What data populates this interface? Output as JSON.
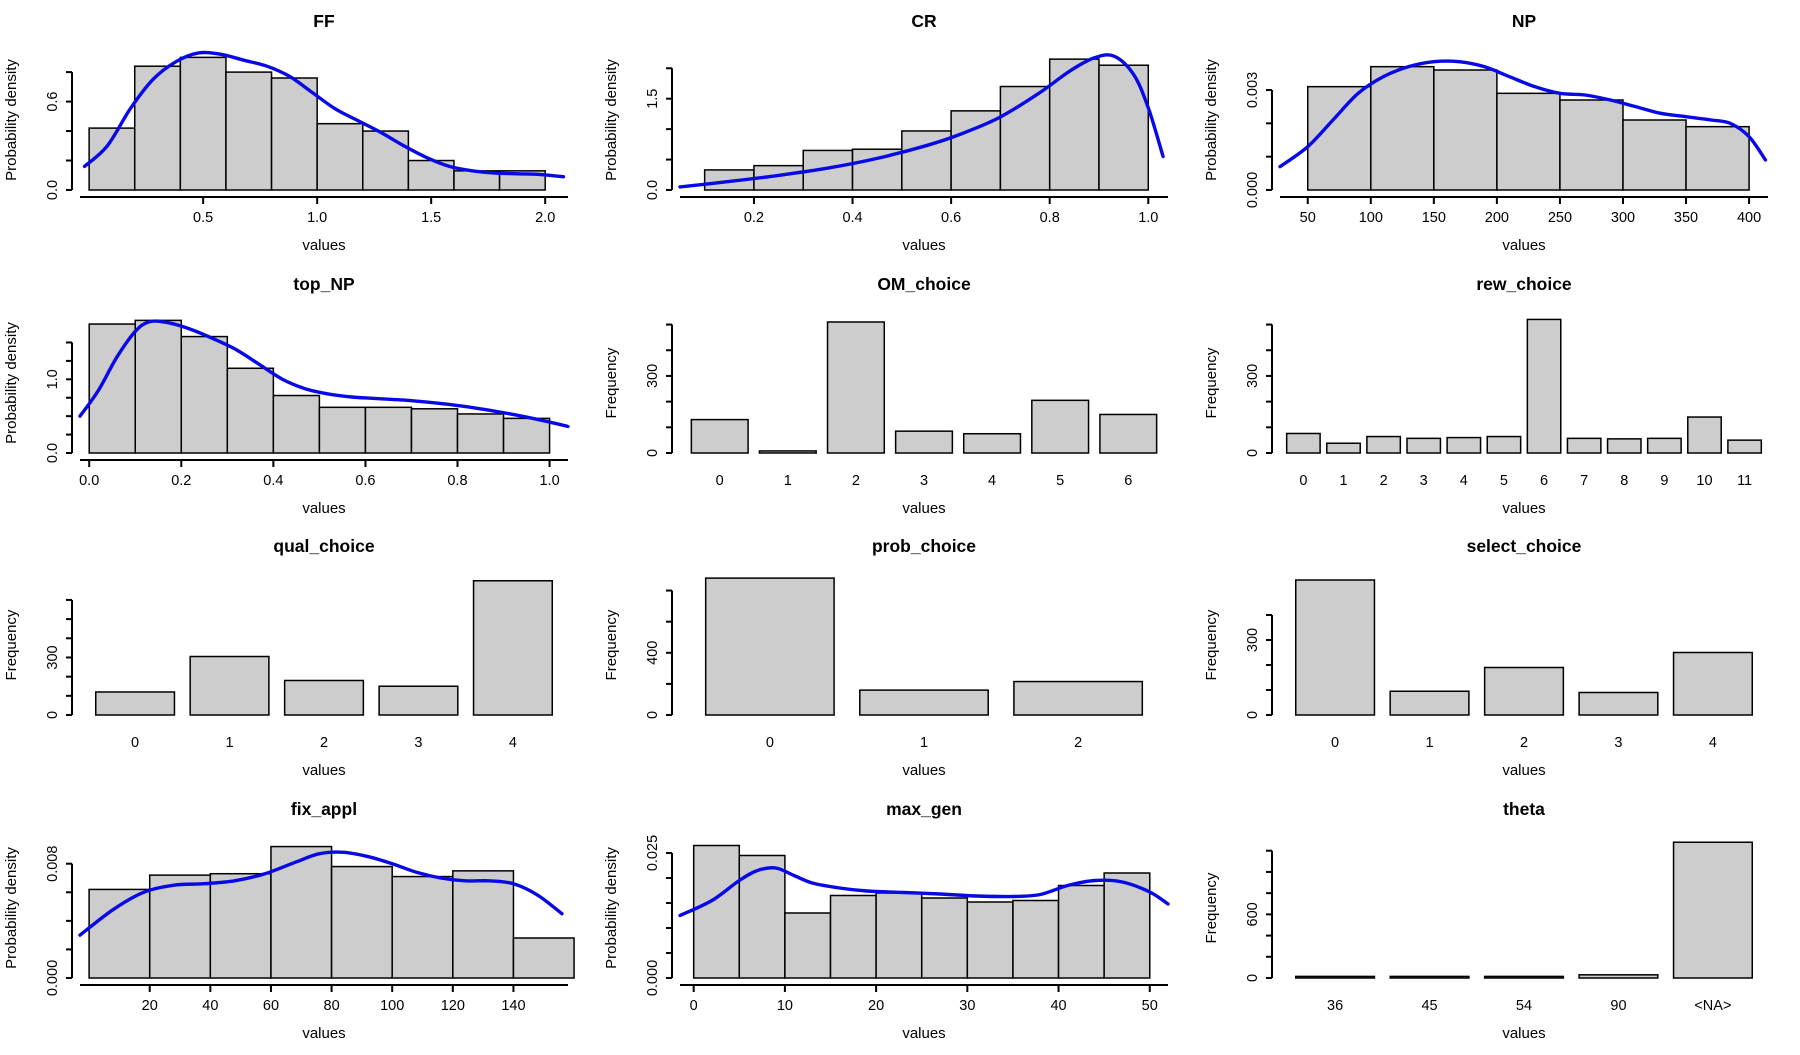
{
  "figure": {
    "background": "#ffffff",
    "bar_fill": "#cdcdcd",
    "bar_stroke": "#000000",
    "axis_color": "#000000",
    "density_color": "#0909e8"
  },
  "chart_data": [
    {
      "title": "FF",
      "type": "histogram",
      "ylabel": "Probability density",
      "xlabel": "values",
      "ymax": 0.95,
      "yticks": [
        [
          0,
          "0.0"
        ],
        [
          0.2,
          ""
        ],
        [
          0.4,
          ""
        ],
        [
          0.6,
          "0.6"
        ],
        [
          0.8,
          ""
        ]
      ],
      "xlim": [
        -0.04,
        2.1
      ],
      "bin_start": 0.0,
      "bin_width": 0.2,
      "heights": [
        0.42,
        0.84,
        0.9,
        0.8,
        0.76,
        0.45,
        0.4,
        0.2,
        0.13,
        0.13
      ],
      "xticks": [
        [
          0.5,
          "0.5"
        ],
        [
          1.0,
          "1.0"
        ],
        [
          1.5,
          "1.5"
        ],
        [
          2.0,
          "2.0"
        ]
      ],
      "density": [
        [
          -0.02,
          0.16
        ],
        [
          0.08,
          0.3
        ],
        [
          0.18,
          0.55
        ],
        [
          0.28,
          0.75
        ],
        [
          0.38,
          0.87
        ],
        [
          0.48,
          0.93
        ],
        [
          0.58,
          0.92
        ],
        [
          0.68,
          0.88
        ],
        [
          0.78,
          0.84
        ],
        [
          0.88,
          0.77
        ],
        [
          0.98,
          0.66
        ],
        [
          1.08,
          0.55
        ],
        [
          1.18,
          0.47
        ],
        [
          1.28,
          0.39
        ],
        [
          1.38,
          0.3
        ],
        [
          1.48,
          0.22
        ],
        [
          1.58,
          0.16
        ],
        [
          1.68,
          0.13
        ],
        [
          1.78,
          0.115
        ],
        [
          1.88,
          0.11
        ],
        [
          1.98,
          0.105
        ],
        [
          2.08,
          0.09
        ]
      ]
    },
    {
      "title": "CR",
      "type": "histogram",
      "ylabel": "Probability density",
      "xlabel": "values",
      "ymax": 2.3,
      "yticks": [
        [
          0,
          "0.0"
        ],
        [
          0.5,
          ""
        ],
        [
          1.0,
          ""
        ],
        [
          1.5,
          "1.5"
        ],
        [
          2.0,
          ""
        ]
      ],
      "xlim": [
        0.05,
        1.04
      ],
      "bin_start": 0.1,
      "bin_width": 0.1,
      "heights": [
        0.33,
        0.4,
        0.65,
        0.67,
        0.97,
        1.3,
        1.7,
        2.15,
        2.05
      ],
      "xticks": [
        [
          0.2,
          "0.2"
        ],
        [
          0.4,
          "0.4"
        ],
        [
          0.6,
          "0.6"
        ],
        [
          0.8,
          "0.8"
        ],
        [
          1.0,
          "1.0"
        ]
      ],
      "density": [
        [
          0.05,
          0.05
        ],
        [
          0.15,
          0.14
        ],
        [
          0.25,
          0.24
        ],
        [
          0.35,
          0.36
        ],
        [
          0.45,
          0.52
        ],
        [
          0.55,
          0.73
        ],
        [
          0.62,
          0.92
        ],
        [
          0.7,
          1.2
        ],
        [
          0.78,
          1.6
        ],
        [
          0.84,
          1.95
        ],
        [
          0.89,
          2.17
        ],
        [
          0.93,
          2.2
        ],
        [
          0.97,
          1.9
        ],
        [
          1.0,
          1.35
        ],
        [
          1.03,
          0.55
        ]
      ]
    },
    {
      "title": "NP",
      "type": "histogram",
      "ylabel": "Probability density",
      "xlabel": "values",
      "ymax": 0.0042,
      "yticks": [
        [
          0,
          "0.000"
        ],
        [
          0.001,
          ""
        ],
        [
          0.002,
          ""
        ],
        [
          0.003,
          "0.003"
        ]
      ],
      "xlim": [
        28,
        415
      ],
      "bin_start": 50,
      "bin_width": 50,
      "heights": [
        0.0031,
        0.0037,
        0.0036,
        0.0029,
        0.0027,
        0.0021,
        0.0019
      ],
      "xticks": [
        [
          50,
          "50"
        ],
        [
          100,
          "100"
        ],
        [
          150,
          "150"
        ],
        [
          200,
          "200"
        ],
        [
          250,
          "250"
        ],
        [
          300,
          "300"
        ],
        [
          350,
          "350"
        ],
        [
          400,
          "400"
        ]
      ],
      "density": [
        [
          28,
          0.0007
        ],
        [
          50,
          0.0013
        ],
        [
          70,
          0.0021
        ],
        [
          90,
          0.0029
        ],
        [
          110,
          0.0034
        ],
        [
          130,
          0.0037
        ],
        [
          150,
          0.00385
        ],
        [
          170,
          0.00385
        ],
        [
          190,
          0.0037
        ],
        [
          210,
          0.0034
        ],
        [
          230,
          0.0031
        ],
        [
          250,
          0.0029
        ],
        [
          270,
          0.00285
        ],
        [
          290,
          0.0027
        ],
        [
          310,
          0.0025
        ],
        [
          330,
          0.0023
        ],
        [
          350,
          0.0022
        ],
        [
          370,
          0.0021
        ],
        [
          385,
          0.002
        ],
        [
          400,
          0.0016
        ],
        [
          413,
          0.0009
        ]
      ]
    },
    {
      "title": "top_NP",
      "type": "histogram",
      "ylabel": "Probability density",
      "xlabel": "values",
      "ymax": 1.9,
      "yticks": [
        [
          0,
          "0.0"
        ],
        [
          0.25,
          ""
        ],
        [
          0.5,
          ""
        ],
        [
          0.75,
          ""
        ],
        [
          1.0,
          "1.0"
        ],
        [
          1.25,
          ""
        ],
        [
          1.5,
          ""
        ]
      ],
      "xlim": [
        -0.02,
        1.04
      ],
      "bin_start": 0.0,
      "bin_width": 0.1,
      "heights": [
        1.75,
        1.8,
        1.58,
        1.15,
        0.78,
        0.62,
        0.62,
        0.6,
        0.53,
        0.47
      ],
      "xticks": [
        [
          0.0,
          "0.0"
        ],
        [
          0.2,
          "0.2"
        ],
        [
          0.4,
          "0.4"
        ],
        [
          0.6,
          "0.6"
        ],
        [
          0.8,
          "0.8"
        ],
        [
          1.0,
          "1.0"
        ]
      ],
      "density": [
        [
          -0.02,
          0.5
        ],
        [
          0.02,
          0.85
        ],
        [
          0.06,
          1.3
        ],
        [
          0.1,
          1.65
        ],
        [
          0.13,
          1.78
        ],
        [
          0.17,
          1.77
        ],
        [
          0.22,
          1.68
        ],
        [
          0.27,
          1.55
        ],
        [
          0.32,
          1.4
        ],
        [
          0.37,
          1.2
        ],
        [
          0.42,
          1.0
        ],
        [
          0.47,
          0.87
        ],
        [
          0.52,
          0.8
        ],
        [
          0.57,
          0.76
        ],
        [
          0.62,
          0.74
        ],
        [
          0.7,
          0.71
        ],
        [
          0.78,
          0.66
        ],
        [
          0.86,
          0.59
        ],
        [
          0.94,
          0.5
        ],
        [
          1.0,
          0.42
        ],
        [
          1.04,
          0.36
        ]
      ]
    },
    {
      "title": "OM_choice",
      "type": "barplot",
      "ylabel": "Frequency",
      "xlabel": "values",
      "ymax": 545,
      "yticks": [
        [
          0,
          "0"
        ],
        [
          100,
          ""
        ],
        [
          200,
          ""
        ],
        [
          300,
          "300"
        ],
        [
          400,
          ""
        ],
        [
          500,
          ""
        ]
      ],
      "categories": [
        "0",
        "1",
        "2",
        "3",
        "4",
        "5",
        "6"
      ],
      "heights": [
        130,
        8,
        510,
        85,
        75,
        205,
        150
      ]
    },
    {
      "title": "rew_choice",
      "type": "barplot",
      "ylabel": "Frequency",
      "xlabel": "values",
      "ymax": 545,
      "yticks": [
        [
          0,
          "0"
        ],
        [
          100,
          ""
        ],
        [
          200,
          ""
        ],
        [
          300,
          "300"
        ],
        [
          400,
          ""
        ],
        [
          500,
          ""
        ]
      ],
      "categories": [
        "0",
        "1",
        "2",
        "3",
        "4",
        "5",
        "6",
        "7",
        "8",
        "9",
        "10",
        "11"
      ],
      "heights": [
        76,
        38,
        64,
        57,
        60,
        64,
        520,
        57,
        55,
        57,
        140,
        50
      ]
    },
    {
      "title": "qual_choice",
      "type": "barplot",
      "ylabel": "Frequency",
      "xlabel": "values",
      "ymax": 730,
      "yticks": [
        [
          0,
          "0"
        ],
        [
          100,
          ""
        ],
        [
          200,
          ""
        ],
        [
          300,
          "300"
        ],
        [
          400,
          ""
        ],
        [
          500,
          ""
        ],
        [
          600,
          ""
        ]
      ],
      "categories": [
        "0",
        "1",
        "2",
        "3",
        "4"
      ],
      "heights": [
        120,
        305,
        180,
        150,
        700
      ]
    },
    {
      "title": "prob_choice",
      "type": "barplot",
      "ylabel": "Frequency",
      "xlabel": "values",
      "ymax": 900,
      "yticks": [
        [
          0,
          "0"
        ],
        [
          200,
          ""
        ],
        [
          400,
          "400"
        ],
        [
          600,
          ""
        ],
        [
          800,
          ""
        ]
      ],
      "categories": [
        "0",
        "1",
        "2"
      ],
      "heights": [
        880,
        160,
        215
      ]
    },
    {
      "title": "select_choice",
      "type": "barplot",
      "ylabel": "Frequency",
      "xlabel": "values",
      "ymax": 560,
      "yticks": [
        [
          0,
          "0"
        ],
        [
          100,
          ""
        ],
        [
          200,
          ""
        ],
        [
          300,
          "300"
        ],
        [
          400,
          ""
        ]
      ],
      "categories": [
        "0",
        "1",
        "2",
        "3",
        "4"
      ],
      "heights": [
        540,
        95,
        190,
        90,
        250
      ]
    },
    {
      "title": "fix_appl",
      "type": "histogram",
      "ylabel": "Probability density",
      "xlabel": "values",
      "ymax": 0.0098,
      "yticks": [
        [
          0,
          "0.000"
        ],
        [
          0.002,
          ""
        ],
        [
          0.004,
          ""
        ],
        [
          0.006,
          ""
        ],
        [
          0.008,
          "0.008"
        ]
      ],
      "xlim": [
        -3,
        158
      ],
      "bin_start": 0,
      "bin_width": 20,
      "heights": [
        0.0062,
        0.0072,
        0.0073,
        0.0092,
        0.0078,
        0.0071,
        0.0075,
        0.0028
      ],
      "xticks": [
        [
          20,
          "20"
        ],
        [
          40,
          "40"
        ],
        [
          60,
          "60"
        ],
        [
          80,
          "80"
        ],
        [
          100,
          "100"
        ],
        [
          120,
          "120"
        ],
        [
          140,
          "140"
        ]
      ],
      "density": [
        [
          -3,
          0.003
        ],
        [
          8,
          0.0048
        ],
        [
          18,
          0.006
        ],
        [
          28,
          0.0065
        ],
        [
          38,
          0.0066
        ],
        [
          48,
          0.0068
        ],
        [
          58,
          0.0073
        ],
        [
          68,
          0.0081
        ],
        [
          76,
          0.0087
        ],
        [
          84,
          0.0088
        ],
        [
          92,
          0.0085
        ],
        [
          100,
          0.008
        ],
        [
          108,
          0.0074
        ],
        [
          116,
          0.007
        ],
        [
          124,
          0.0068
        ],
        [
          132,
          0.0068
        ],
        [
          140,
          0.0066
        ],
        [
          148,
          0.0058
        ],
        [
          156,
          0.0045
        ]
      ]
    },
    {
      "title": "max_gen",
      "type": "histogram",
      "ylabel": "Probability density",
      "xlabel": "values",
      "ymax": 0.028,
      "yticks": [
        [
          0,
          "0.000"
        ],
        [
          0.005,
          ""
        ],
        [
          0.01,
          ""
        ],
        [
          0.015,
          ""
        ],
        [
          0.02,
          ""
        ],
        [
          0.025,
          "0.025"
        ]
      ],
      "xlim": [
        -1.5,
        52
      ],
      "bin_start": 0,
      "bin_width": 5,
      "heights": [
        0.0265,
        0.0245,
        0.013,
        0.0165,
        0.017,
        0.016,
        0.0152,
        0.0155,
        0.0185,
        0.021
      ],
      "xticks": [
        [
          0,
          "0"
        ],
        [
          10,
          "10"
        ],
        [
          20,
          "20"
        ],
        [
          30,
          "30"
        ],
        [
          40,
          "40"
        ],
        [
          50,
          "50"
        ]
      ],
      "density": [
        [
          -1.5,
          0.0125
        ],
        [
          2,
          0.0155
        ],
        [
          5,
          0.0195
        ],
        [
          7,
          0.0215
        ],
        [
          9,
          0.022
        ],
        [
          11,
          0.0205
        ],
        [
          13,
          0.019
        ],
        [
          16,
          0.018
        ],
        [
          19,
          0.0174
        ],
        [
          23,
          0.0171
        ],
        [
          27,
          0.0168
        ],
        [
          31,
          0.0164
        ],
        [
          35,
          0.0163
        ],
        [
          38,
          0.0167
        ],
        [
          41,
          0.0185
        ],
        [
          44,
          0.0195
        ],
        [
          47,
          0.0192
        ],
        [
          50,
          0.0172
        ],
        [
          52,
          0.0148
        ]
      ]
    },
    {
      "title": "theta",
      "type": "barplot",
      "ylabel": "Frequency",
      "xlabel": "values",
      "ymax": 1320,
      "yticks": [
        [
          0,
          "0"
        ],
        [
          200,
          ""
        ],
        [
          400,
          ""
        ],
        [
          600,
          "600"
        ],
        [
          800,
          ""
        ],
        [
          1000,
          ""
        ],
        [
          1200,
          ""
        ]
      ],
      "categories": [
        "36",
        "45",
        "54",
        "90",
        "<NA>"
      ],
      "heights": [
        15,
        15,
        15,
        30,
        1280
      ]
    }
  ]
}
